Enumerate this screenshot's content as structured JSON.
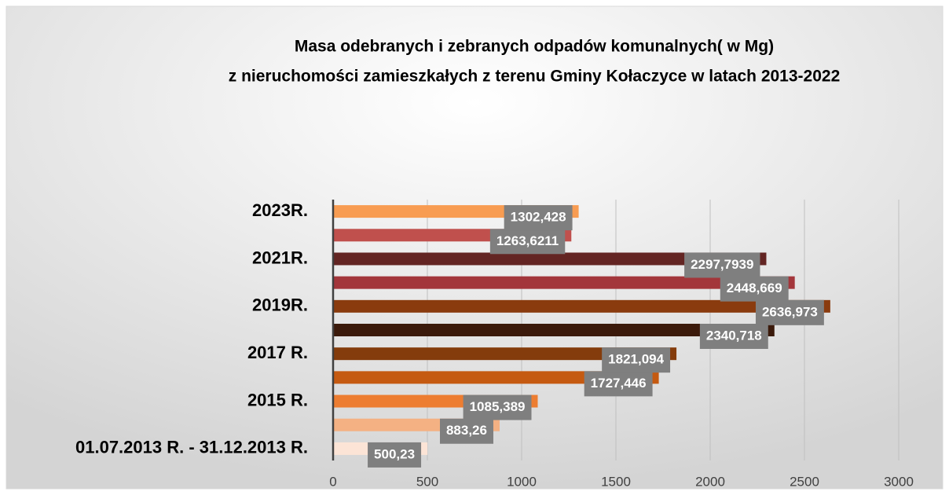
{
  "chart_data": {
    "type": "bar",
    "orientation": "horizontal",
    "title": [
      "Masa odebranych i zebranych odpadów komunalnych( w Mg)",
      "z nieruchomości zamieszkałych z terenu Gminy Kołaczyce w latach 2013-2022"
    ],
    "categories": [
      "01.07.2013 R. - 31.12.2013 R.",
      null,
      "2015 R.",
      null,
      "2017 R.",
      null,
      "2019R.",
      null,
      "2021R.",
      null,
      "2023R."
    ],
    "values": [
      500.23,
      883.26,
      1085.389,
      1727.446,
      1821.094,
      2340.718,
      2636.973,
      2448.669,
      2297.7939,
      1263.6211,
      1302.428
    ],
    "value_labels": [
      "500,23",
      "883,26",
      "1085,389",
      "1727,446",
      "1821,094",
      "2340,718",
      "2636,973",
      "2448,669",
      "2297,7939",
      "1263,6211",
      "1302,428"
    ],
    "colors": [
      "#fce4d6",
      "#f4b183",
      "#ed7d31",
      "#c55a11",
      "#843c0c",
      "#3b1a0b",
      "#8a3b0e",
      "#a3363b",
      "#632523",
      "#c0504d",
      "#f89c52"
    ],
    "xlim": [
      0,
      3000
    ],
    "xticks": [
      0,
      500,
      1000,
      1500,
      2000,
      2500,
      3000
    ],
    "grid": true
  }
}
